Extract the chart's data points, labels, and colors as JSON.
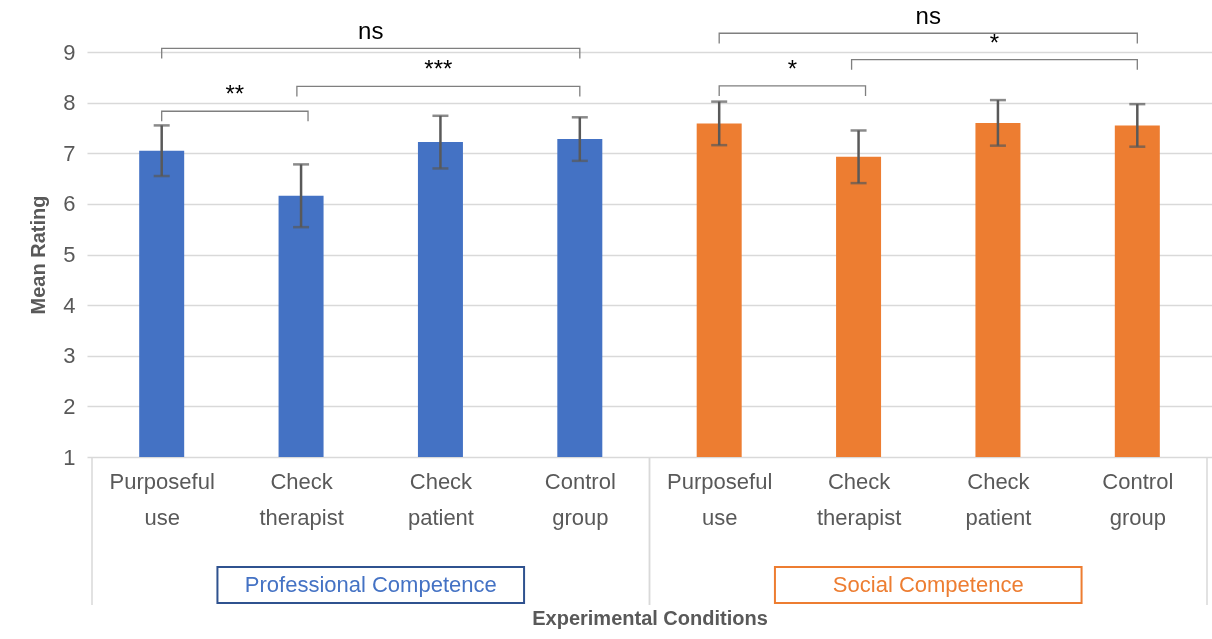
{
  "chart_data": {
    "type": "bar",
    "xlabel": "Experimental Conditions",
    "ylabel": "Mean Rating",
    "categories": [
      "Purposeful use",
      "Check therapist",
      "Check patient",
      "Control group",
      "Purposeful use",
      "Check therapist",
      "Check patient",
      "Control group"
    ],
    "series": [
      {
        "name": "Professional Competence",
        "color": "#4472c4",
        "values": [
          7.05,
          6.16,
          7.22,
          7.28,
          null,
          null,
          null,
          null
        ],
        "errors": [
          0.5,
          0.62,
          0.52,
          0.43,
          null,
          null,
          null,
          null
        ]
      },
      {
        "name": "Social Competence",
        "color": "#ed7d31",
        "values": [
          null,
          null,
          null,
          null,
          7.59,
          6.93,
          7.6,
          7.55
        ],
        "errors": [
          null,
          null,
          null,
          null,
          0.43,
          0.52,
          0.45,
          0.42
        ]
      }
    ],
    "ylim": [
      1,
      9
    ],
    "yticks": [
      1,
      2,
      3,
      4,
      5,
      6,
      7,
      8,
      9
    ],
    "grid": "y",
    "legend": "bottom",
    "annotations": [
      "ns",
      "**",
      "***",
      "ns",
      "*",
      "*"
    ]
  }
}
